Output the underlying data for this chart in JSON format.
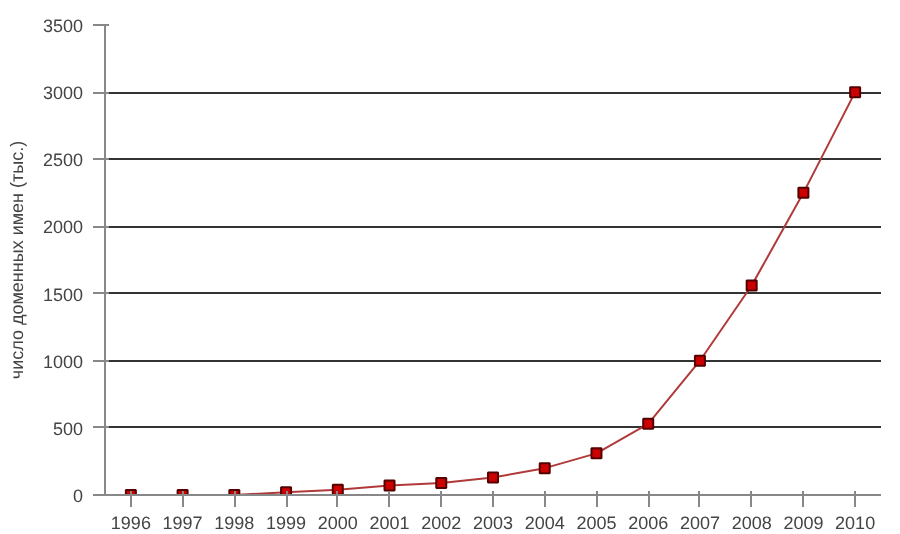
{
  "chart_data": {
    "type": "line",
    "ylabel": "число доменных имен (тыс.)",
    "categories": [
      "1996",
      "1997",
      "1998",
      "1999",
      "2000",
      "2001",
      "2002",
      "2003",
      "2004",
      "2005",
      "2006",
      "2007",
      "2008",
      "2009",
      "2010"
    ],
    "series": [
      {
        "color": "#b03a3a",
        "values": [
          0,
          0,
          0,
          20,
          40,
          70,
          90,
          130,
          200,
          310,
          530,
          1000,
          1560,
          2250,
          3000
        ]
      }
    ],
    "ylim": [
      0,
      3500
    ],
    "yticks": [
      0,
      500,
      1000,
      1500,
      2000,
      2500,
      3000,
      3500
    ],
    "grid": "y",
    "marker": "square",
    "line_style": "solid"
  }
}
